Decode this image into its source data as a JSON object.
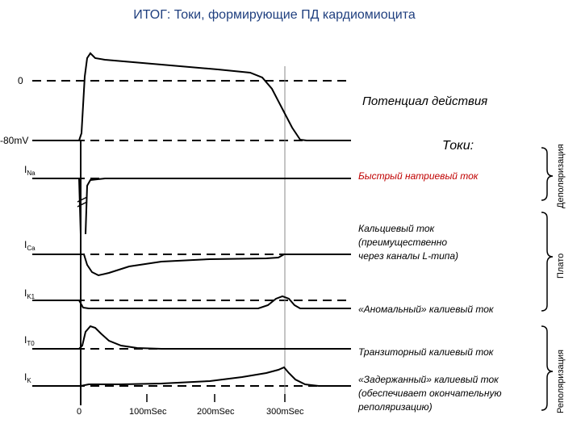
{
  "title": "ИТОГ: Токи, формирующие ПД кардиомиоцита",
  "labels": {
    "ap": "Потенциал действия",
    "currents_header": "Токи:",
    "na": "Быстрый натриевый ток",
    "ca_line1": "Кальциевый ток",
    "ca_line2": "(преимущественно",
    "ca_line3": "через каналы L-типа)",
    "k1": "«Аномальный» калиевый ток",
    "t0": "Транзиторный калиевый ток",
    "k_line1": "«Задержанный» калиевый ток",
    "k_line2": "(обеспечивает окончательную",
    "k_line3": "реполяризацию)"
  },
  "phases": {
    "depol": "Деполяризация",
    "plateau": "Плато",
    "repol": "Реполяризация"
  },
  "axes": {
    "zero": "0",
    "minus80": "-80mV",
    "ticks": [
      "0",
      "100mSec",
      "200mSec",
      "300mSec"
    ]
  },
  "signals": {
    "na": {
      "main": "I",
      "sub": "Na"
    },
    "ca": {
      "main": "I",
      "sub": "Ca"
    },
    "k1": {
      "main": "I",
      "sub": "K1"
    },
    "t0": {
      "main": "I",
      "sub": "T0"
    },
    "k": {
      "main": "I",
      "sub": "K"
    }
  }
}
